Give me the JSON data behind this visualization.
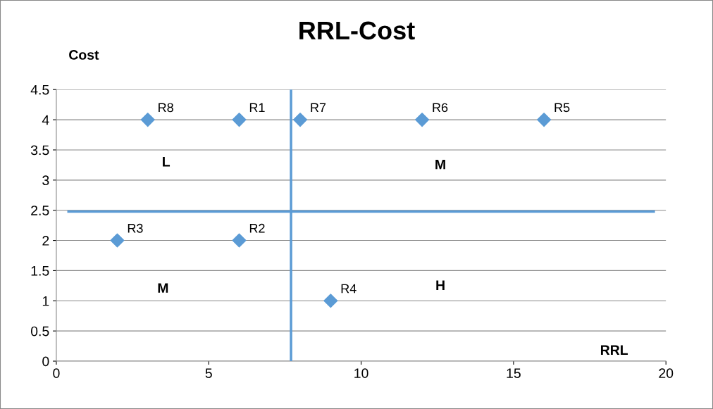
{
  "chart_data": {
    "type": "scatter",
    "title": "RRL-Cost",
    "xlabel": "RRL",
    "ylabel": "Cost",
    "x": [
      6,
      6,
      2,
      9,
      16,
      12,
      8,
      3
    ],
    "values": [
      4,
      2,
      2,
      1,
      4,
      4,
      4,
      4
    ],
    "value_labels": [
      "R1",
      "R2",
      "R3",
      "R4",
      "R5",
      "R6",
      "R7",
      "R8"
    ],
    "color": "#5b9bd5",
    "marker": "diamond",
    "xlim": [
      0,
      20
    ],
    "xticks": [
      0,
      5,
      10,
      15,
      20
    ],
    "ylim": [
      0,
      4.5
    ],
    "yticks": [
      0,
      0.5,
      1,
      1.5,
      2,
      2.5,
      3,
      3.5,
      4,
      4.5
    ],
    "grid": "y",
    "ref_lines": [
      {
        "axis": "x",
        "value": 7.7,
        "color": "#5b9bd5"
      },
      {
        "axis": "y",
        "value": 2.48,
        "color": "#5b9bd5"
      }
    ],
    "annotations": [
      "L",
      "M",
      "M",
      "H"
    ]
  }
}
